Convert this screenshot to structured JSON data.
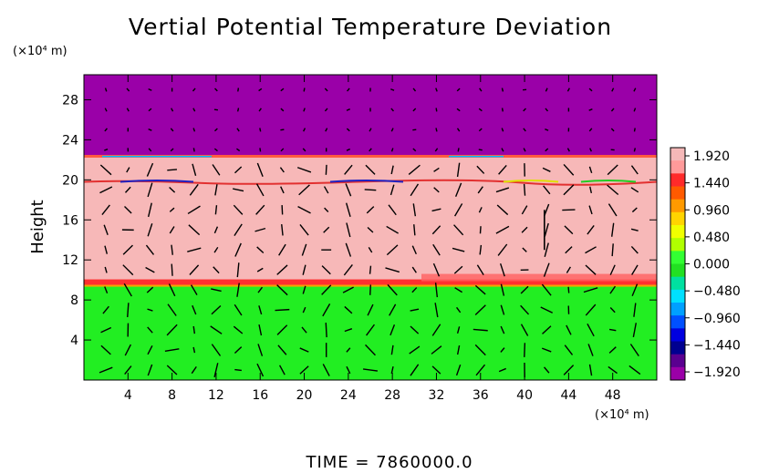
{
  "chart_data": {
    "type": "heatmap",
    "title": "Vertial Potential Temperature Deviation",
    "ylabel": "Height",
    "y_unit": "(×10⁴ m)",
    "x_unit": "(×10⁴ m)",
    "time_label": "TIME  =  7860000.0",
    "xlim": [
      0,
      52
    ],
    "ylim": [
      0,
      30.5
    ],
    "xticks": [
      4,
      8,
      12,
      16,
      20,
      24,
      28,
      32,
      36,
      40,
      44,
      48
    ],
    "yticks": [
      4,
      8,
      12,
      16,
      20,
      24,
      28
    ],
    "colorbar_ticks": [
      "1.920",
      "1.440",
      "0.960",
      "0.480",
      "0.000",
      "−0.480",
      "−0.960",
      "−1.440",
      "−1.920"
    ],
    "colorbar_colors": [
      "#f5b8b8",
      "#ff9a9a",
      "#ff2a2a",
      "#ff5a00",
      "#ff9a00",
      "#ffd400",
      "#f0ff00",
      "#b0ff00",
      "#33ff33",
      "#22e022",
      "#00e0a0",
      "#00e0ff",
      "#00a0ff",
      "#0050ff",
      "#0000e0",
      "#000090",
      "#5a0090",
      "#9a00a8"
    ],
    "layers": [
      {
        "from": 22.4,
        "to": 30.5,
        "value": -1.92,
        "color": "#9a00a8"
      },
      {
        "from": 9.6,
        "to": 22.4,
        "value": 1.92,
        "color": "#f7b8b8"
      },
      {
        "from": 0,
        "to": 9.6,
        "value": 0.0,
        "color": "#22ee22"
      }
    ],
    "vector_field": "wind arrows (black) overlaid on a regular grid",
    "grid": false
  }
}
